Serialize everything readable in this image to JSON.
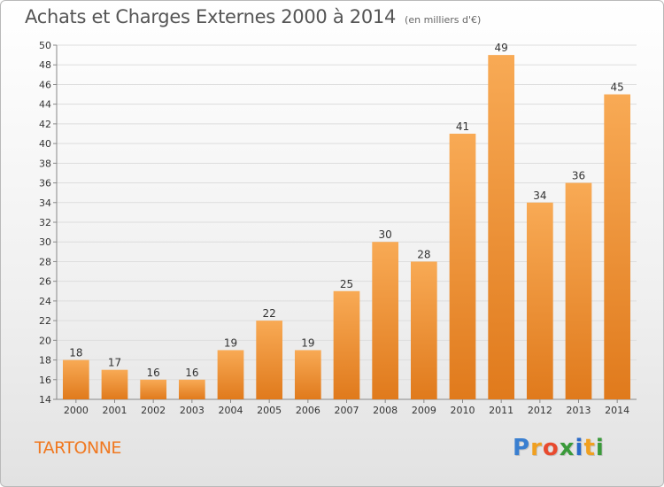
{
  "title": "Achats et Charges Externes 2000 à 2014",
  "subtitle": "(en milliers d'€)",
  "commune": "TARTONNE",
  "logo": {
    "text": "Proxiti",
    "letters": [
      "P",
      "r",
      "o",
      "x",
      "i",
      "t",
      "i"
    ],
    "colors": [
      "#3a7fd0",
      "#f0a020",
      "#e84a2e",
      "#3a9a3a",
      "#2a6ac8",
      "#f0a020",
      "#3a9a3a"
    ]
  },
  "colors": {
    "bar_light": "#f8aa55",
    "bar_dark": "#e07a1c",
    "grid": "#dddddd",
    "axis": "#888888"
  },
  "chart_data": {
    "type": "bar",
    "title": "Achats et Charges Externes 2000 à 2014",
    "subtitle": "(en milliers d'€)",
    "xlabel": "",
    "ylabel": "",
    "categories": [
      "2000",
      "2001",
      "2002",
      "2003",
      "2004",
      "2005",
      "2006",
      "2007",
      "2008",
      "2009",
      "2010",
      "2011",
      "2012",
      "2013",
      "2014"
    ],
    "values": [
      18,
      17,
      16,
      16,
      19,
      22,
      19,
      25,
      30,
      28,
      41,
      49,
      34,
      36,
      45
    ],
    "ylim": [
      14,
      50
    ],
    "yticks": [
      14,
      16,
      18,
      20,
      22,
      24,
      26,
      28,
      30,
      32,
      34,
      36,
      38,
      40,
      42,
      44,
      46,
      48,
      50
    ],
    "grid": true,
    "legend": "none"
  }
}
